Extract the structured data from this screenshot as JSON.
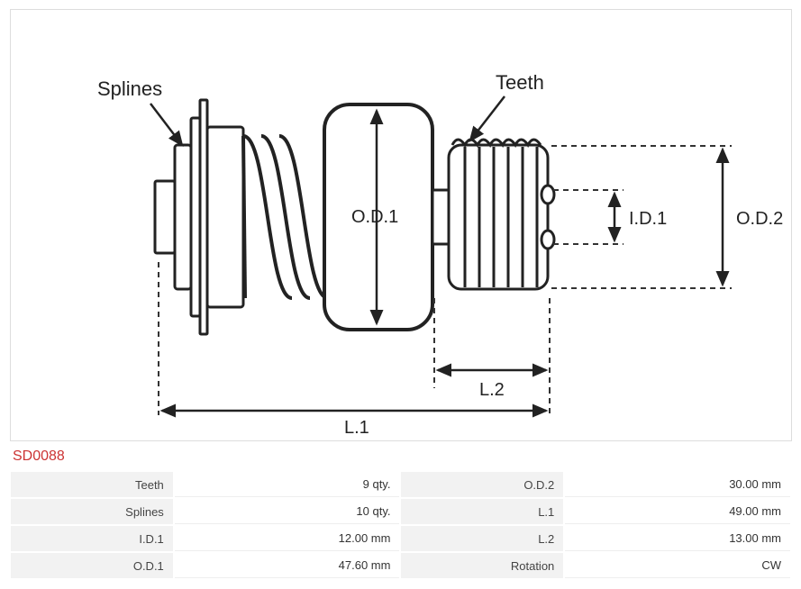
{
  "part_number": "SD0088",
  "diagram": {
    "type": "engineering-schematic",
    "stroke": "#222222",
    "stroke_width": 3,
    "dash_stroke": "#333333",
    "dash_pattern": "6,5",
    "labels": {
      "splines": "Splines",
      "teeth": "Teeth",
      "od1": "O.D.1",
      "od2": "O.D.2",
      "id1": "I.D.1",
      "l1": "L.1",
      "l2": "L.2"
    }
  },
  "spec": {
    "rows": [
      {
        "p1": "Teeth",
        "v1": "9 qty.",
        "p2": "O.D.2",
        "v2": "30.00 mm"
      },
      {
        "p1": "Splines",
        "v1": "10 qty.",
        "p2": "L.1",
        "v2": "49.00 mm"
      },
      {
        "p1": "I.D.1",
        "v1": "12.00 mm",
        "p2": "L.2",
        "v2": "13.00 mm"
      },
      {
        "p1": "O.D.1",
        "v1": "47.60 mm",
        "p2": "Rotation",
        "v2": "CW"
      }
    ]
  }
}
